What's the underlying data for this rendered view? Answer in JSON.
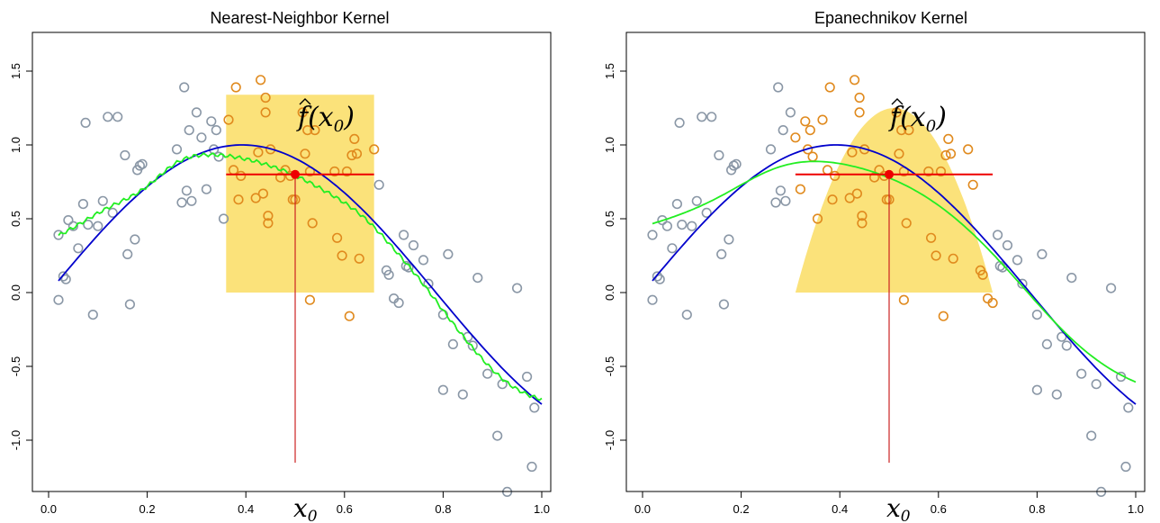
{
  "colors": {
    "points_outside": "#8a97a6",
    "points_inside": "#e08a1e",
    "true_curve": "#0000cc",
    "fit_curve": "#22ee22",
    "kernel_fill": "#fbe27a",
    "target": "#ee0000",
    "target_line": "#cc2222"
  },
  "chart_data": [
    {
      "type": "scatter",
      "title": "Nearest-Neighbor Kernel",
      "kernel": "box",
      "window": [
        0.36,
        0.66
      ],
      "window_height": 1.34,
      "x0": 0.5,
      "x0_label": "x",
      "x0_sub": "0",
      "fhat": 0.8,
      "fhat_label": "f(x",
      "fhat_label_end": ")",
      "fhat_label_sub": "0",
      "xlim": [
        0,
        1
      ],
      "ylim": [
        -1.4,
        1.5
      ],
      "xticks": [
        "0.0",
        "0.2",
        "0.4",
        "0.6",
        "0.8",
        "1.0"
      ],
      "yticks": [
        "-1.0",
        "-0.5",
        "0.0",
        "0.5",
        "1.0",
        "1.5"
      ]
    },
    {
      "type": "scatter",
      "title": "Epanechnikov Kernel",
      "kernel": "epanechnikov",
      "window": [
        0.31,
        0.71
      ],
      "window_height": 1.25,
      "x0": 0.5,
      "x0_label": "x",
      "x0_sub": "0",
      "fhat": 0.8,
      "fhat_label": "f(x",
      "fhat_label_end": ")",
      "fhat_label_sub": "0",
      "xlim": [
        0,
        1
      ],
      "ylim": [
        -1.4,
        1.5
      ],
      "xticks": [
        "0.0",
        "0.2",
        "0.4",
        "0.6",
        "0.8",
        "1.0"
      ],
      "yticks": [
        "-1.0",
        "-0.5",
        "0.0",
        "0.5",
        "1.0",
        "1.5"
      ]
    }
  ],
  "points": [
    [
      0.02,
      0.39
    ],
    [
      0.02,
      -0.05
    ],
    [
      0.03,
      0.11
    ],
    [
      0.035,
      0.09
    ],
    [
      0.04,
      0.49
    ],
    [
      0.05,
      0.45
    ],
    [
      0.06,
      0.3
    ],
    [
      0.07,
      0.6
    ],
    [
      0.075,
      1.15
    ],
    [
      0.08,
      0.46
    ],
    [
      0.09,
      -0.15
    ],
    [
      0.1,
      0.45
    ],
    [
      0.11,
      0.62
    ],
    [
      0.12,
      1.19
    ],
    [
      0.13,
      0.54
    ],
    [
      0.14,
      1.19
    ],
    [
      0.155,
      0.93
    ],
    [
      0.16,
      0.26
    ],
    [
      0.165,
      -0.08
    ],
    [
      0.175,
      0.36
    ],
    [
      0.18,
      0.83
    ],
    [
      0.185,
      0.86
    ],
    [
      0.19,
      0.87
    ],
    [
      0.26,
      0.97
    ],
    [
      0.27,
      0.61
    ],
    [
      0.275,
      1.39
    ],
    [
      0.28,
      0.69
    ],
    [
      0.285,
      1.1
    ],
    [
      0.29,
      0.62
    ],
    [
      0.3,
      1.22
    ],
    [
      0.31,
      1.05
    ],
    [
      0.32,
      0.7
    ],
    [
      0.33,
      1.16
    ],
    [
      0.335,
      0.97
    ],
    [
      0.34,
      1.1
    ],
    [
      0.345,
      0.92
    ],
    [
      0.355,
      0.5
    ],
    [
      0.365,
      1.17
    ],
    [
      0.375,
      0.83
    ],
    [
      0.38,
      1.39
    ],
    [
      0.385,
      0.63
    ],
    [
      0.39,
      0.79
    ],
    [
      0.42,
      0.64
    ],
    [
      0.425,
      0.95
    ],
    [
      0.43,
      1.44
    ],
    [
      0.435,
      0.67
    ],
    [
      0.44,
      1.32
    ],
    [
      0.44,
      1.22
    ],
    [
      0.445,
      0.52
    ],
    [
      0.445,
      0.47
    ],
    [
      0.45,
      0.97
    ],
    [
      0.47,
      0.78
    ],
    [
      0.48,
      0.83
    ],
    [
      0.49,
      0.79
    ],
    [
      0.495,
      0.63
    ],
    [
      0.5,
      0.63
    ],
    [
      0.515,
      1.22
    ],
    [
      0.52,
      0.94
    ],
    [
      0.525,
      1.1
    ],
    [
      0.53,
      0.82
    ],
    [
      0.53,
      -0.05
    ],
    [
      0.535,
      0.47
    ],
    [
      0.54,
      1.1
    ],
    [
      0.58,
      0.82
    ],
    [
      0.585,
      0.37
    ],
    [
      0.595,
      0.25
    ],
    [
      0.605,
      0.82
    ],
    [
      0.61,
      -0.16
    ],
    [
      0.615,
      0.93
    ],
    [
      0.62,
      1.04
    ],
    [
      0.625,
      0.94
    ],
    [
      0.63,
      0.23
    ],
    [
      0.66,
      0.97
    ],
    [
      0.67,
      0.73
    ],
    [
      0.685,
      0.15
    ],
    [
      0.69,
      0.12
    ],
    [
      0.7,
      -0.04
    ],
    [
      0.71,
      -0.07
    ],
    [
      0.72,
      0.39
    ],
    [
      0.725,
      0.18
    ],
    [
      0.73,
      0.17
    ],
    [
      0.74,
      0.32
    ],
    [
      0.76,
      0.22
    ],
    [
      0.77,
      0.06
    ],
    [
      0.8,
      -0.15
    ],
    [
      0.8,
      -0.66
    ],
    [
      0.81,
      0.26
    ],
    [
      0.82,
      -0.35
    ],
    [
      0.84,
      -0.69
    ],
    [
      0.85,
      -0.3
    ],
    [
      0.86,
      -0.36
    ],
    [
      0.87,
      0.1
    ],
    [
      0.89,
      -0.55
    ],
    [
      0.91,
      -0.97
    ],
    [
      0.92,
      -0.62
    ],
    [
      0.93,
      -1.35
    ],
    [
      0.95,
      0.03
    ],
    [
      0.97,
      -0.57
    ],
    [
      0.98,
      -1.18
    ],
    [
      0.985,
      -0.78
    ]
  ]
}
